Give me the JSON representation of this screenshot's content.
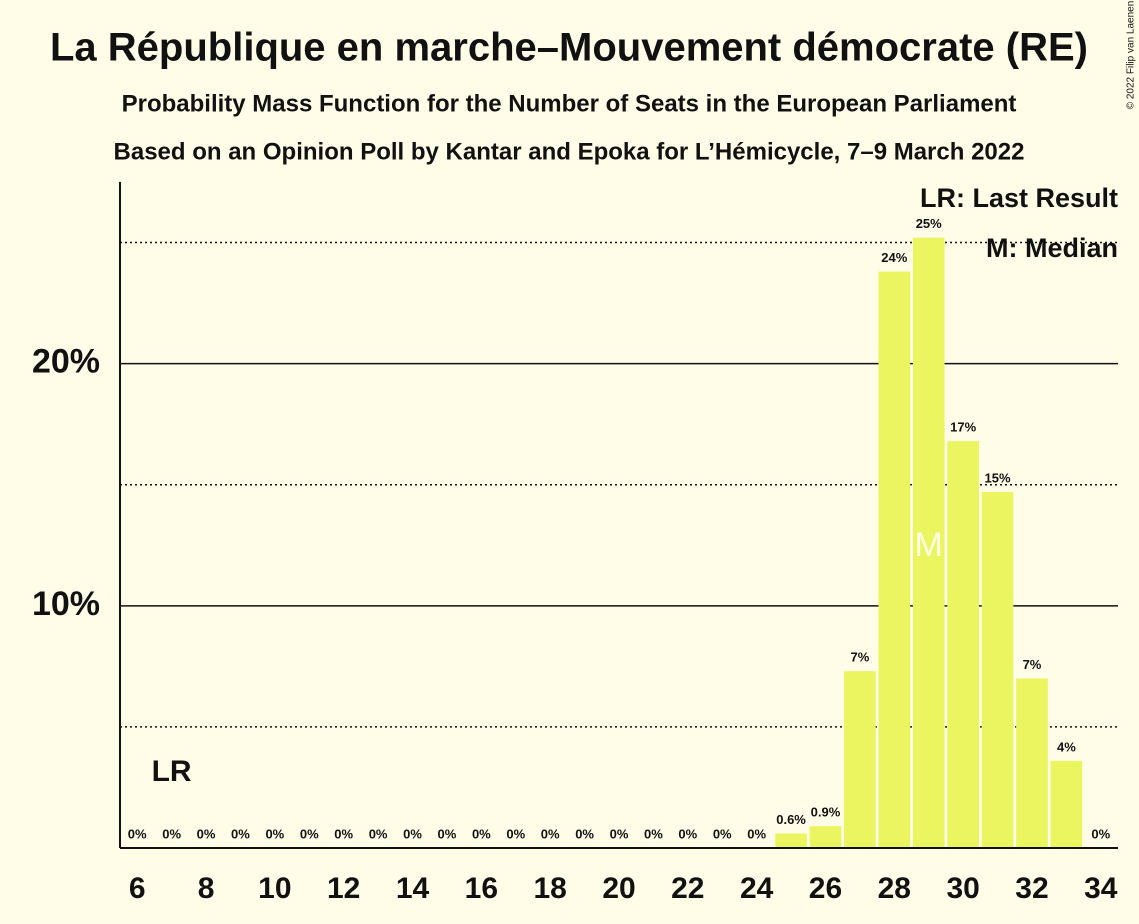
{
  "chart_data": {
    "type": "bar",
    "title": "La République en marche–Mouvement démocrate (RE)",
    "subtitle": "Probability Mass Function for the Number of Seats in the European Parliament",
    "caption": "Based on an Opinion Poll by Kantar and Epoka for L’Hémicycle, 7–9 March 2022",
    "copyright": "© 2022 Filip van Laenen",
    "x": [
      6,
      7,
      8,
      9,
      10,
      11,
      12,
      13,
      14,
      15,
      16,
      17,
      18,
      19,
      20,
      21,
      22,
      23,
      24,
      25,
      26,
      27,
      28,
      29,
      30,
      31,
      32,
      33,
      34
    ],
    "values": [
      0,
      0,
      0,
      0,
      0,
      0,
      0,
      0,
      0,
      0,
      0,
      0,
      0,
      0,
      0,
      0,
      0,
      0,
      0,
      0.6,
      0.9,
      7.3,
      23.8,
      25.2,
      16.8,
      14.7,
      7.0,
      3.6,
      0
    ],
    "value_labels": [
      "0%",
      "0%",
      "0%",
      "0%",
      "0%",
      "0%",
      "0%",
      "0%",
      "0%",
      "0%",
      "0%",
      "0%",
      "0%",
      "0%",
      "0%",
      "0%",
      "0%",
      "0%",
      "0%",
      "0.6%",
      "0.9%",
      "7%",
      "24%",
      "25%",
      "17%",
      "15%",
      "7%",
      "4%",
      "0%"
    ],
    "color": "#ebf55f",
    "xlim": [
      5.5,
      34.5
    ],
    "xticks": [
      6,
      8,
      10,
      12,
      14,
      16,
      18,
      20,
      22,
      24,
      26,
      28,
      30,
      32,
      34
    ],
    "ylim": [
      0,
      27.5
    ],
    "yticks": [
      {
        "value": 10,
        "label": "10%"
      },
      {
        "value": 20,
        "label": "20%"
      }
    ],
    "minor_yticks": [
      5,
      15,
      25
    ],
    "last_result": {
      "x": 7,
      "label": "LR"
    },
    "median": {
      "x": 29,
      "label": "M"
    },
    "legend": [
      "LR: Last Result",
      "M: Median"
    ]
  }
}
